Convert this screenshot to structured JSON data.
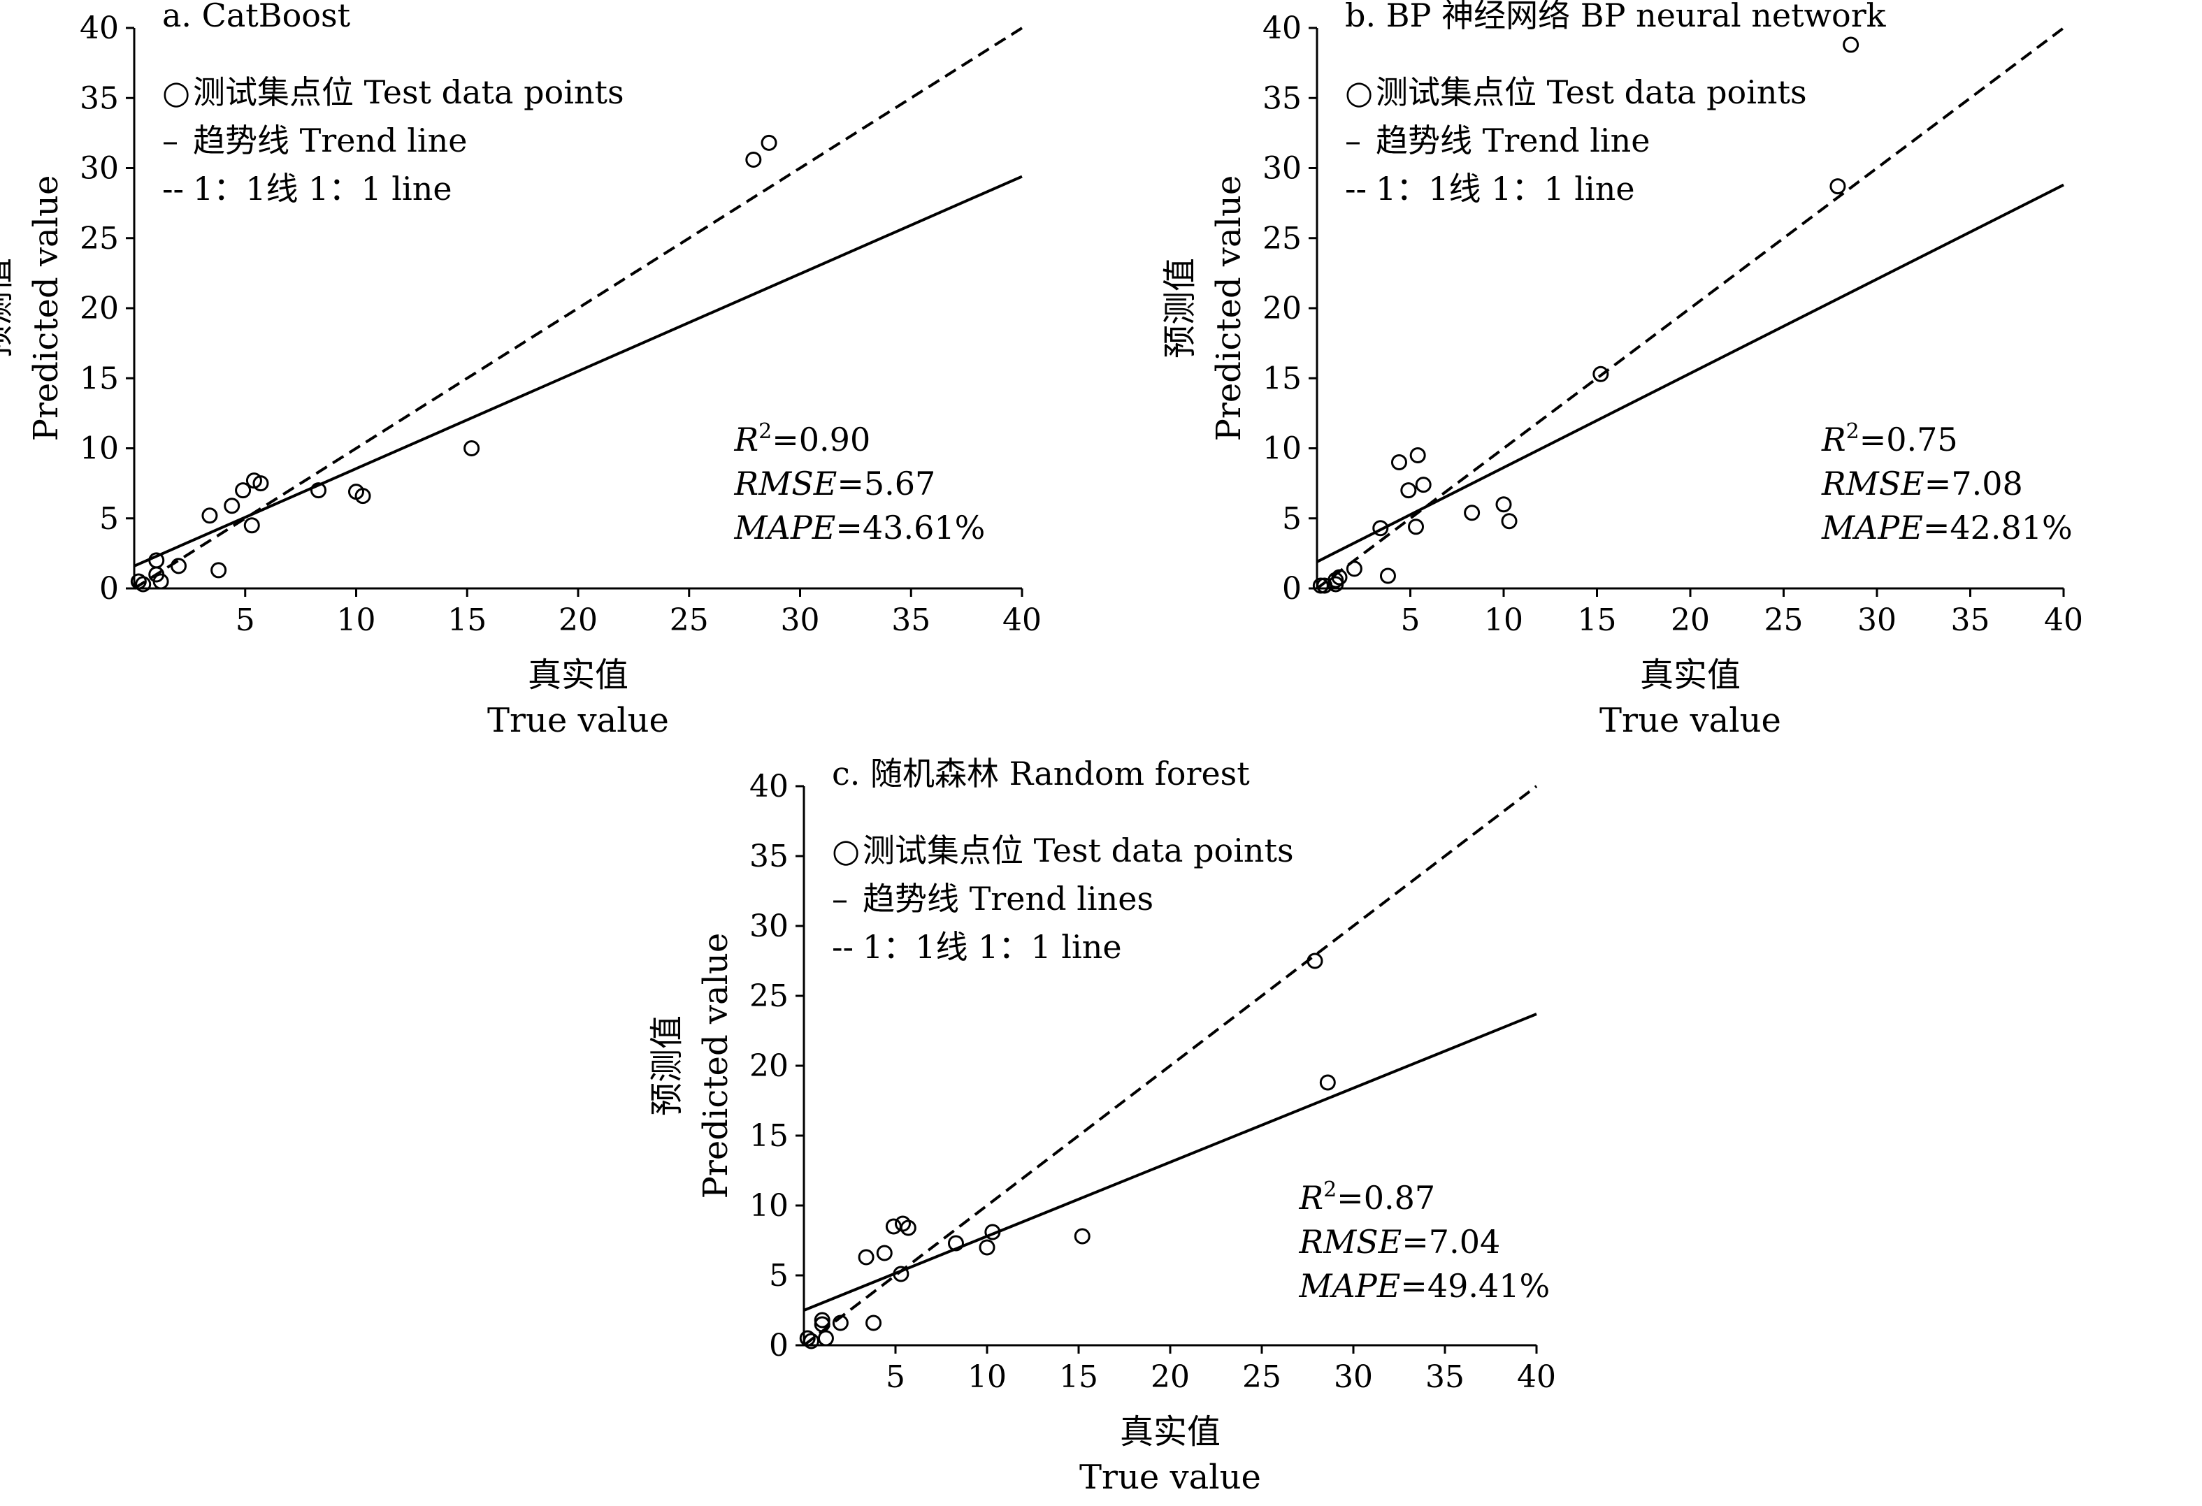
{
  "chart_data": [
    {
      "type": "scatter",
      "title": "a. CatBoost",
      "xlabel": "真实值",
      "xlabel_en": "True value",
      "ylabel": "预测值",
      "ylabel_en": "Predicted value",
      "xlim": [
        0,
        40
      ],
      "ylim": [
        0,
        40
      ],
      "xticks": [
        5,
        10,
        15,
        20,
        25,
        30,
        35,
        40
      ],
      "yticks": [
        0,
        5,
        10,
        15,
        20,
        25,
        30,
        35,
        40
      ],
      "legend": [
        {
          "symbol": "○",
          "label": "测试集点位 Test data points"
        },
        {
          "symbol": "–",
          "label": "趋势线 Trend line"
        },
        {
          "symbol": "--",
          "label": "1：1线 1：1 line"
        }
      ],
      "points": [
        [
          0.2,
          0.5
        ],
        [
          0.4,
          0.3
        ],
        [
          1.0,
          2.0
        ],
        [
          1.0,
          1.0
        ],
        [
          1.2,
          0.5
        ],
        [
          2.0,
          1.6
        ],
        [
          3.4,
          5.2
        ],
        [
          3.8,
          1.3
        ],
        [
          4.4,
          5.9
        ],
        [
          4.9,
          7.0
        ],
        [
          5.3,
          4.5
        ],
        [
          5.4,
          7.7
        ],
        [
          5.7,
          7.5
        ],
        [
          8.3,
          7.0
        ],
        [
          10.0,
          6.9
        ],
        [
          10.3,
          6.6
        ],
        [
          15.2,
          10.0
        ],
        [
          27.9,
          30.6
        ],
        [
          28.6,
          31.8
        ]
      ],
      "trend_line": [
        [
          0,
          1.6
        ],
        [
          40,
          29.4
        ]
      ],
      "identity_line": [
        [
          0,
          0
        ],
        [
          40,
          40
        ]
      ],
      "stats": {
        "r2_prefix": "R",
        "r2_sup": "2",
        "r2_value": "=0.90",
        "rmse_label": "RMSE",
        "rmse_value": "=5.67",
        "mape_label": "MAPE",
        "mape_value": "=43.61%"
      }
    },
    {
      "type": "scatter",
      "title": "b. BP 神经网络 BP neural network",
      "xlabel": "真实值",
      "xlabel_en": "True value",
      "ylabel": "预测值",
      "ylabel_en": "Predicted value",
      "xlim": [
        0,
        40
      ],
      "ylim": [
        0,
        40
      ],
      "xticks": [
        5,
        10,
        15,
        20,
        25,
        30,
        35,
        40
      ],
      "yticks": [
        0,
        5,
        10,
        15,
        20,
        25,
        30,
        35,
        40
      ],
      "legend": [
        {
          "symbol": "○",
          "label": "测试集点位 Test data points"
        },
        {
          "symbol": "–",
          "label": "趋势线 Trend line"
        },
        {
          "symbol": "--",
          "label": "1：1线 1：1 line"
        }
      ],
      "points": [
        [
          0.2,
          0.2
        ],
        [
          0.4,
          0.2
        ],
        [
          1.0,
          0.6
        ],
        [
          1.0,
          0.3
        ],
        [
          1.2,
          0.8
        ],
        [
          2.0,
          1.4
        ],
        [
          3.4,
          4.3
        ],
        [
          3.8,
          0.9
        ],
        [
          4.4,
          9.0
        ],
        [
          4.9,
          7.0
        ],
        [
          5.3,
          4.4
        ],
        [
          5.4,
          9.5
        ],
        [
          5.7,
          7.4
        ],
        [
          8.3,
          5.4
        ],
        [
          10.0,
          6.0
        ],
        [
          10.3,
          4.8
        ],
        [
          15.2,
          15.3
        ],
        [
          27.9,
          28.7
        ],
        [
          28.6,
          38.8
        ]
      ],
      "trend_line": [
        [
          0,
          1.9
        ],
        [
          40,
          28.8
        ]
      ],
      "identity_line": [
        [
          0,
          0
        ],
        [
          40,
          40
        ]
      ],
      "stats": {
        "r2_prefix": "R",
        "r2_sup": "2",
        "r2_value": "=0.75",
        "rmse_label": "RMSE",
        "rmse_value": "=7.08",
        "mape_label": "MAPE",
        "mape_value": "=42.81%"
      }
    },
    {
      "type": "scatter",
      "title": "c. 随机森林 Random forest",
      "xlabel": "真实值",
      "xlabel_en": "True value",
      "ylabel": "预测值",
      "ylabel_en": "Predicted value",
      "xlim": [
        0,
        40
      ],
      "ylim": [
        0,
        40
      ],
      "xticks": [
        5,
        10,
        15,
        20,
        25,
        30,
        35,
        40
      ],
      "yticks": [
        0,
        5,
        10,
        15,
        20,
        25,
        30,
        35,
        40
      ],
      "legend": [
        {
          "symbol": "○",
          "label": "测试集点位 Test data points"
        },
        {
          "symbol": "–",
          "label": "趋势线 Trend lines"
        },
        {
          "symbol": "--",
          "label": "1：1线 1：1 line"
        }
      ],
      "points": [
        [
          0.2,
          0.5
        ],
        [
          0.4,
          0.3
        ],
        [
          1.0,
          1.8
        ],
        [
          1.0,
          1.5
        ],
        [
          1.2,
          0.5
        ],
        [
          2.0,
          1.6
        ],
        [
          3.4,
          6.3
        ],
        [
          3.8,
          1.6
        ],
        [
          4.4,
          6.6
        ],
        [
          4.9,
          8.5
        ],
        [
          5.3,
          5.1
        ],
        [
          5.4,
          8.7
        ],
        [
          5.7,
          8.4
        ],
        [
          8.3,
          7.3
        ],
        [
          10.0,
          7.0
        ],
        [
          10.3,
          8.1
        ],
        [
          15.2,
          7.8
        ],
        [
          27.9,
          27.5
        ],
        [
          28.6,
          18.8
        ]
      ],
      "trend_line": [
        [
          0,
          2.5
        ],
        [
          40,
          23.7
        ]
      ],
      "identity_line": [
        [
          0,
          0
        ],
        [
          40,
          40
        ]
      ],
      "stats": {
        "r2_prefix": "R",
        "r2_sup": "2",
        "r2_value": "=0.87",
        "rmse_label": "RMSE",
        "rmse_value": "=7.04",
        "mape_label": "MAPE",
        "mape_value": "=49.41%"
      }
    }
  ]
}
